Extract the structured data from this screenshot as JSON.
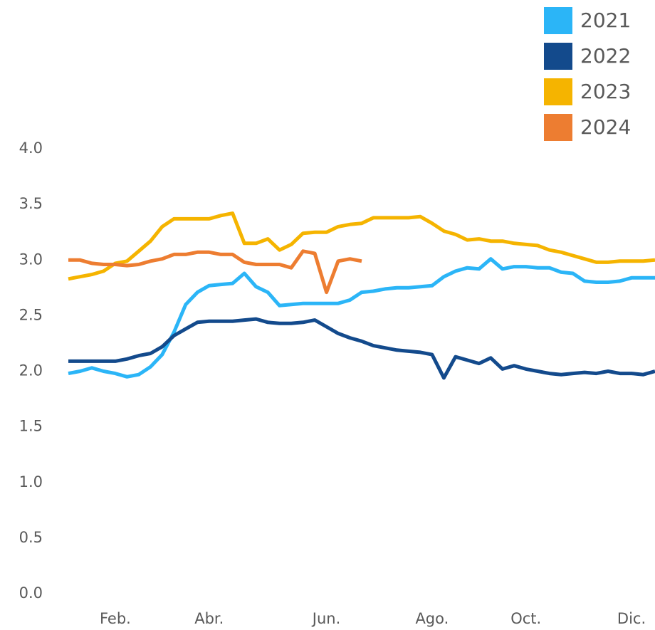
{
  "chart_data": {
    "type": "line",
    "categories": [
      null,
      null,
      null,
      null,
      "Feb.",
      null,
      null,
      null,
      null,
      null,
      null,
      null,
      "Abr.",
      null,
      null,
      null,
      null,
      null,
      null,
      null,
      null,
      null,
      "Jun.",
      null,
      null,
      null,
      null,
      null,
      null,
      null,
      null,
      "Ago.",
      null,
      null,
      null,
      null,
      null,
      null,
      null,
      "Oct.",
      null,
      null,
      null,
      null,
      null,
      null,
      null,
      null,
      "Dic.",
      null,
      null
    ],
    "series": [
      {
        "name": "2021",
        "color": "#2bb5f7",
        "values": [
          1.98,
          2.0,
          2.03,
          2.0,
          1.98,
          1.95,
          1.97,
          2.04,
          2.15,
          2.35,
          2.6,
          2.71,
          2.77,
          2.78,
          2.79,
          2.88,
          2.76,
          2.71,
          2.59,
          2.6,
          2.61,
          2.61,
          2.61,
          2.61,
          2.64,
          2.71,
          2.72,
          2.74,
          2.75,
          2.75,
          2.76,
          2.77,
          2.85,
          2.9,
          2.93,
          2.92,
          3.01,
          2.92,
          2.94,
          2.94,
          2.93,
          2.93,
          2.89,
          2.88,
          2.81,
          2.8,
          2.8,
          2.81,
          2.84,
          2.84,
          2.84
        ]
      },
      {
        "name": "2022",
        "color": "#134a8c",
        "values": [
          2.09,
          2.09,
          2.09,
          2.09,
          2.09,
          2.11,
          2.14,
          2.16,
          2.22,
          2.32,
          2.38,
          2.44,
          2.45,
          2.45,
          2.45,
          2.46,
          2.47,
          2.44,
          2.43,
          2.43,
          2.44,
          2.46,
          2.4,
          2.34,
          2.3,
          2.27,
          2.23,
          2.21,
          2.19,
          2.18,
          2.17,
          2.15,
          1.94,
          2.13,
          2.1,
          2.07,
          2.12,
          2.02,
          2.05,
          2.02,
          2.0,
          1.98,
          1.97,
          1.98,
          1.99,
          1.98,
          2.0,
          1.98,
          1.98,
          1.97,
          2.0
        ]
      },
      {
        "name": "2023",
        "color": "#f5b400",
        "values": [
          2.83,
          2.85,
          2.87,
          2.9,
          2.97,
          2.99,
          3.08,
          3.17,
          3.3,
          3.37,
          3.37,
          3.37,
          3.37,
          3.4,
          3.42,
          3.15,
          3.15,
          3.19,
          3.09,
          3.14,
          3.24,
          3.25,
          3.25,
          3.3,
          3.32,
          3.33,
          3.38,
          3.38,
          3.38,
          3.38,
          3.39,
          3.33,
          3.26,
          3.23,
          3.18,
          3.19,
          3.17,
          3.17,
          3.15,
          3.14,
          3.13,
          3.09,
          3.07,
          3.04,
          3.01,
          2.98,
          2.98,
          2.99,
          2.99,
          2.99,
          3.0
        ]
      },
      {
        "name": "2024",
        "color": "#ed7d31",
        "values": [
          3.0,
          3.0,
          2.97,
          2.96,
          2.96,
          2.95,
          2.96,
          2.99,
          3.01,
          3.05,
          3.05,
          3.07,
          3.07,
          3.05,
          3.05,
          2.98,
          2.96,
          2.96,
          2.96,
          2.93,
          3.08,
          3.06,
          2.71,
          2.99,
          3.01,
          2.99,
          null,
          null,
          null,
          null,
          null,
          null,
          null,
          null,
          null,
          null,
          null,
          null,
          null,
          null,
          null,
          null,
          null,
          null,
          null,
          null,
          null,
          null,
          null,
          null,
          null
        ]
      }
    ],
    "ylim": [
      0,
      4
    ],
    "yticks": [
      {
        "value": 0,
        "label": "0.0"
      },
      0.5,
      {
        "value": 1,
        "label": "1.0"
      },
      1.5,
      {
        "value": 2,
        "label": "2.0"
      },
      2.5,
      {
        "value": 3,
        "label": "3.0"
      },
      3.5,
      {
        "value": 4,
        "label": "4.0"
      }
    ],
    "grid": false
  }
}
